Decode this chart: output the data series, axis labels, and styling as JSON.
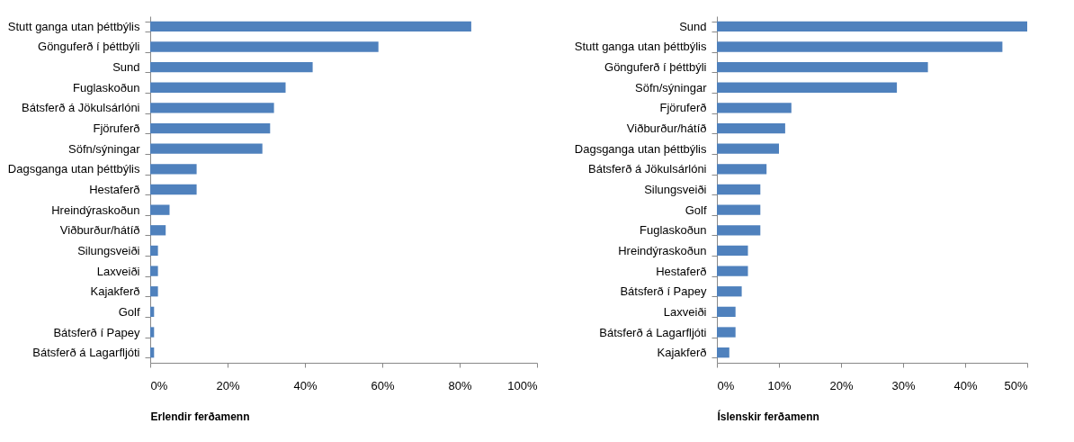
{
  "chart_data": [
    {
      "type": "bar",
      "orientation": "horizontal",
      "xlabel": "Erlendir ferðamenn",
      "categories": [
        "Stutt ganga utan þéttbýlis",
        "Gönguferð í þéttbýli",
        "Sund",
        "Fuglaskoðun",
        "Bátsferð á Jökulsárlóni",
        "Fjöruferð",
        "Söfn/sýningar",
        "Dagsganga utan þéttbýlis",
        "Hestaferð",
        "Hreindýraskoðun",
        "Viðburður/hátíð",
        "Silungsveiði",
        "Laxveiði",
        "Kajakferð",
        "Golf",
        "Bátsferð í Papey",
        "Bátsferð á Lagarfljóti"
      ],
      "values": [
        83,
        59,
        42,
        35,
        32,
        31,
        29,
        12,
        12,
        5,
        4,
        2,
        2,
        2,
        1,
        1,
        1
      ],
      "color": "#4f81bd",
      "xlim": [
        0,
        100
      ],
      "xticks": [
        {
          "value": 0,
          "label": "0%"
        },
        {
          "value": 20,
          "label": "20%"
        },
        {
          "value": 40,
          "label": "40%"
        },
        {
          "value": 60,
          "label": "60%"
        },
        {
          "value": 80,
          "label": "80%"
        },
        {
          "value": 100,
          "label": "100%"
        }
      ],
      "grid": false
    },
    {
      "type": "bar",
      "orientation": "horizontal",
      "xlabel": "Íslenskir ferðamenn",
      "categories": [
        "Sund",
        "Stutt ganga utan þéttbýlis",
        "Gönguferð í þéttbýli",
        "Söfn/sýningar",
        "Fjöruferð",
        "Viðburður/hátíð",
        "Dagsganga utan þéttbýlis",
        "Bátsferð á Jökulsárlóni",
        "Silungsveiði",
        "Golf",
        "Fuglaskoðun",
        "Hreindýraskoðun",
        "Hestaferð",
        "Bátsferð í Papey",
        "Laxveiði",
        "Bátsferð á Lagarfljóti",
        "Kajakferð"
      ],
      "values": [
        50,
        46,
        34,
        29,
        12,
        11,
        10,
        8,
        7,
        7,
        7,
        5,
        5,
        4,
        3,
        3,
        2
      ],
      "color": "#4f81bd",
      "xlim": [
        0,
        50
      ],
      "xticks": [
        {
          "value": 0,
          "label": "0%"
        },
        {
          "value": 10,
          "label": "10%"
        },
        {
          "value": 20,
          "label": "20%"
        },
        {
          "value": 30,
          "label": "30%"
        },
        {
          "value": 40,
          "label": "40%"
        },
        {
          "value": 50,
          "label": "50%"
        }
      ],
      "grid": false
    }
  ]
}
